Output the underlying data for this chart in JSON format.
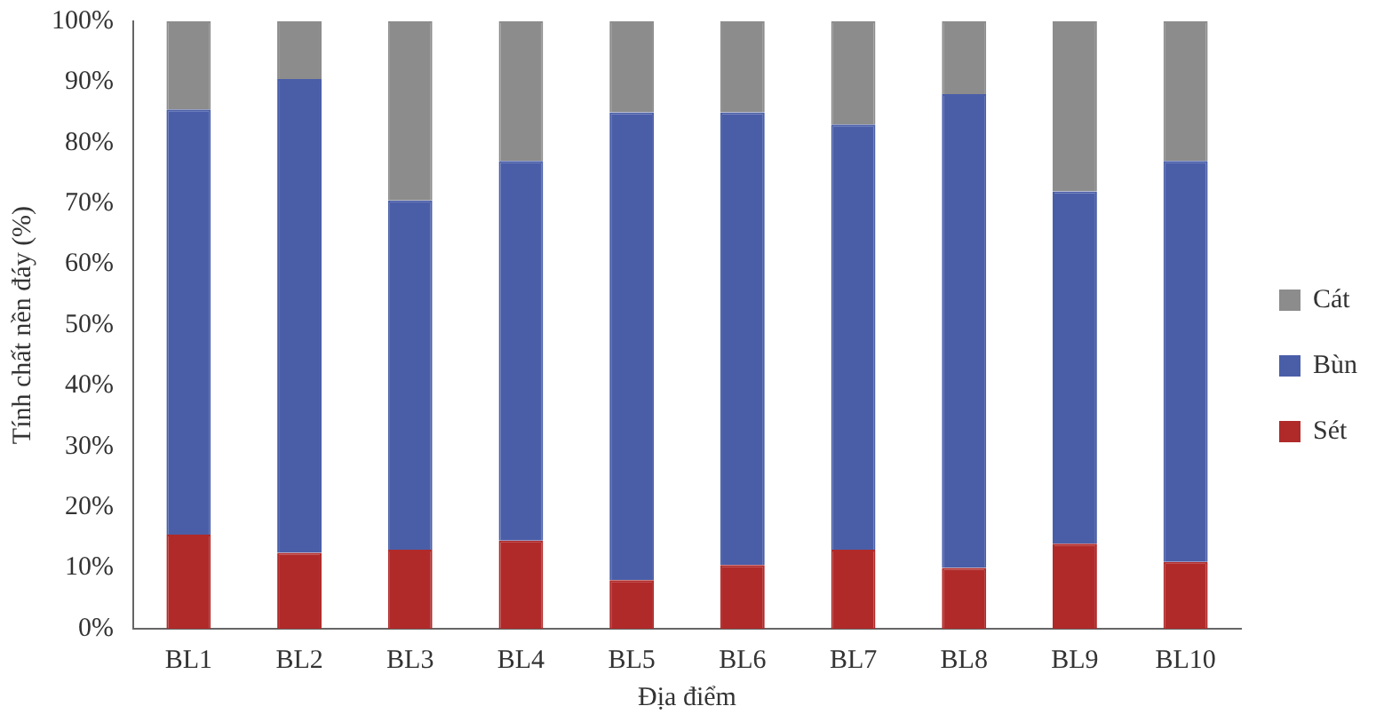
{
  "chart_data": {
    "type": "bar",
    "stacked": true,
    "xlabel": "Địa điểm",
    "ylabel": "Tính chất nền đáy (%)",
    "categories": [
      "BL1",
      "BL2",
      "BL3",
      "BL4",
      "BL5",
      "BL6",
      "BL7",
      "BL8",
      "BL9",
      "BL10"
    ],
    "series": [
      {
        "name": "Sét",
        "color": "#b02a2a",
        "values": [
          15.5,
          12.5,
          13,
          14.5,
          8,
          10.5,
          13,
          10,
          14,
          11
        ]
      },
      {
        "name": "Bùn",
        "color": "#4a5ea8",
        "values": [
          70,
          78,
          57.5,
          62.5,
          77,
          74.5,
          70,
          78,
          58,
          66
        ]
      },
      {
        "name": "Cát",
        "color": "#8c8c8c",
        "values": [
          14.5,
          9.5,
          29.5,
          23,
          15,
          15,
          17,
          12,
          28,
          23
        ]
      }
    ],
    "ylim": [
      0,
      100
    ],
    "yticks": [
      {
        "value": 0,
        "label": "0%"
      },
      {
        "value": 10,
        "label": "10%"
      },
      {
        "value": 20,
        "label": "20%"
      },
      {
        "value": 30,
        "label": "30%"
      },
      {
        "value": 40,
        "label": "40%"
      },
      {
        "value": 50,
        "label": "50%"
      },
      {
        "value": 60,
        "label": "60%"
      },
      {
        "value": 70,
        "label": "70%"
      },
      {
        "value": 80,
        "label": "80%"
      },
      {
        "value": 90,
        "label": "90%"
      },
      {
        "value": 100,
        "label": "100%"
      }
    ],
    "grid": false,
    "legend": "right"
  }
}
